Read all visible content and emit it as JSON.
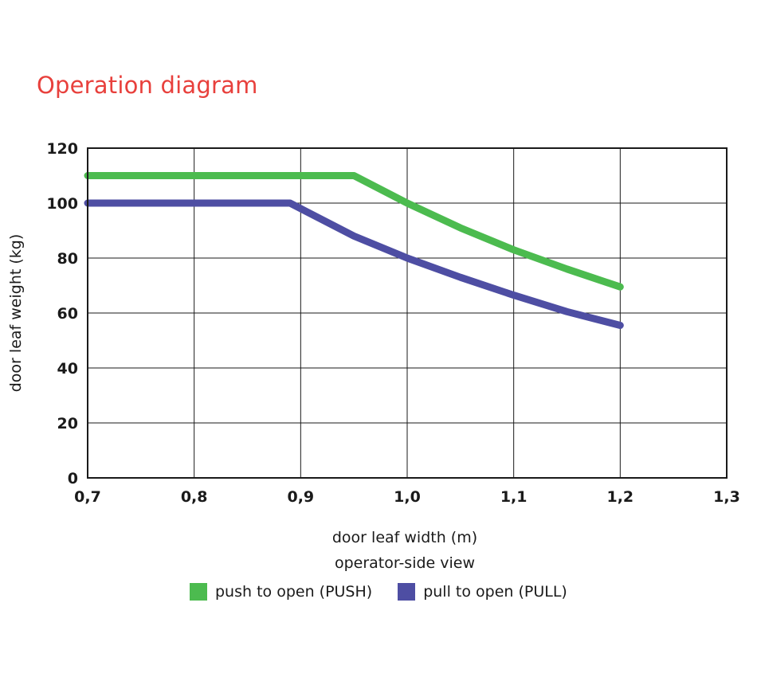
{
  "title": "Operation diagram",
  "xlabel": "door leaf width (m)",
  "subtitle": "operator-side view",
  "ylabel": "door leaf weight (kg)",
  "colors": {
    "push": "#4cbb4f",
    "pull": "#4e4ea3",
    "title": "#e8403c"
  },
  "chart_data": {
    "type": "line",
    "title": "Operation diagram",
    "xlabel": "door leaf width (m)",
    "ylabel": "door leaf weight (kg)",
    "xlim": [
      0.7,
      1.3
    ],
    "ylim": [
      0,
      120
    ],
    "xticks": [
      "0,7",
      "0,8",
      "0,9",
      "1,0",
      "1,1",
      "1,2",
      "1,3"
    ],
    "yticks": [
      "0",
      "20",
      "40",
      "60",
      "80",
      "100",
      "120"
    ],
    "grid": true,
    "legend_position": "bottom",
    "series": [
      {
        "name": "push to open (PUSH)",
        "color": "#4cbb4f",
        "points": [
          [
            0.7,
            110
          ],
          [
            0.95,
            110
          ],
          [
            1.0,
            100
          ],
          [
            1.05,
            91
          ],
          [
            1.1,
            83
          ],
          [
            1.15,
            76
          ],
          [
            1.2,
            69.5
          ]
        ]
      },
      {
        "name": "pull to open (PULL)",
        "color": "#4e4ea3",
        "points": [
          [
            0.7,
            100
          ],
          [
            0.89,
            100
          ],
          [
            0.95,
            88
          ],
          [
            1.0,
            80
          ],
          [
            1.05,
            73
          ],
          [
            1.1,
            66.5
          ],
          [
            1.15,
            60.5
          ],
          [
            1.2,
            55.5
          ]
        ]
      }
    ]
  },
  "legend": [
    {
      "label": "push to open (PUSH)",
      "color": "#4cbb4f"
    },
    {
      "label": "pull to open (PULL)",
      "color": "#4e4ea3"
    }
  ]
}
